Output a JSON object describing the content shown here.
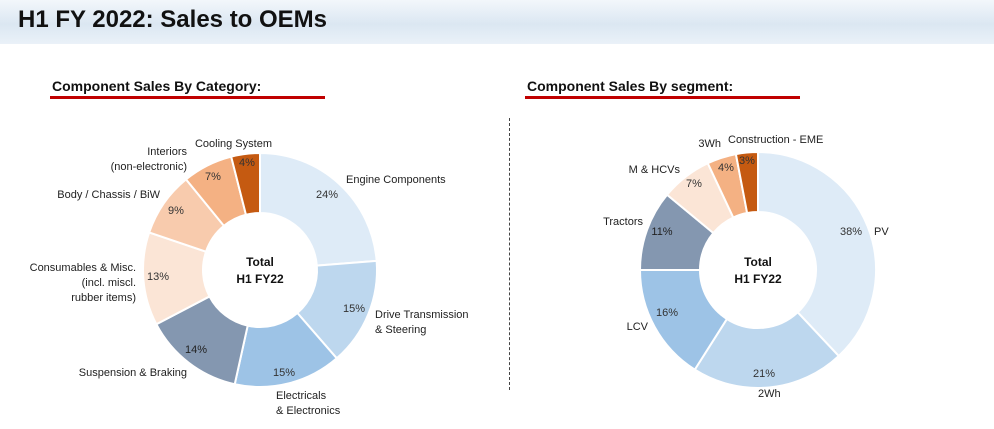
{
  "page": {
    "title": "H1 FY 2022: Sales to OEMs"
  },
  "chart_data": [
    {
      "type": "pie",
      "title": "Component Sales By Category:",
      "center_label": [
        "Total",
        "H1 FY22"
      ],
      "series": [
        {
          "name": "Engine Components",
          "label_lines": [
            "Engine Components"
          ],
          "value": 24,
          "label": "24%",
          "color": "#deebf7",
          "pct_color": "#333333"
        },
        {
          "name": "Drive Transmission & Steering",
          "label_lines": [
            "Drive Transmission",
            "& Steering"
          ],
          "value": 15,
          "label": "15%",
          "color": "#bdd7ee",
          "pct_color": "#333333"
        },
        {
          "name": "Electricals & Electronics",
          "label_lines": [
            "Electricals",
            "& Electronics"
          ],
          "value": 15,
          "label": "15%",
          "color": "#9dc3e6",
          "pct_color": "#333333"
        },
        {
          "name": "Suspension & Braking",
          "label_lines": [
            "Suspension & Braking"
          ],
          "value": 14,
          "label": "14%",
          "color": "#8497b0",
          "pct_color": "#222222"
        },
        {
          "name": "Consumables & Misc. (incl. miscl. rubber items)",
          "label_lines": [
            "Consumables & Misc.",
            "(incl. miscl.",
            "rubber items)"
          ],
          "value": 13,
          "label": "13%",
          "color": "#fbe5d6",
          "pct_color": "#333333"
        },
        {
          "name": "Body / Chassis / BiW",
          "label_lines": [
            "Body / Chassis / BiW"
          ],
          "value": 9,
          "label": "9%",
          "color": "#f8cbad",
          "pct_color": "#333333"
        },
        {
          "name": "Interiors (non-electronic)",
          "label_lines": [
            "Interiors",
            "(non-electronic)"
          ],
          "value": 7,
          "label": "7%",
          "color": "#f4b183",
          "pct_color": "#333333"
        },
        {
          "name": "Cooling System",
          "label_lines": [
            "Cooling System"
          ],
          "value": 4,
          "label": "4%",
          "color": "#c55a11",
          "pct_color": "#333333"
        }
      ]
    },
    {
      "type": "pie",
      "title": "Component Sales By segment:",
      "center_label": [
        "Total",
        "H1 FY22"
      ],
      "series": [
        {
          "name": "PV",
          "label_lines": [
            "PV"
          ],
          "value": 38,
          "label": "38%",
          "color": "#deebf7",
          "pct_color": "#333333"
        },
        {
          "name": "2Wh",
          "label_lines": [
            "2Wh"
          ],
          "value": 21,
          "label": "21%",
          "color": "#bdd7ee",
          "pct_color": "#333333"
        },
        {
          "name": "LCV",
          "label_lines": [
            "LCV"
          ],
          "value": 16,
          "label": "16%",
          "color": "#9dc3e6",
          "pct_color": "#333333"
        },
        {
          "name": "Tractors",
          "label_lines": [
            "Tractors"
          ],
          "value": 11,
          "label": "11%",
          "color": "#8497b0",
          "pct_color": "#222222"
        },
        {
          "name": "M & HCVs",
          "label_lines": [
            "M & HCVs"
          ],
          "value": 7,
          "label": "7%",
          "color": "#fbe5d6",
          "pct_color": "#333333"
        },
        {
          "name": "3Wh",
          "label_lines": [
            "3Wh"
          ],
          "value": 4,
          "label": "4%",
          "color": "#f4b183",
          "pct_color": "#333333"
        },
        {
          "name": "Construction - EME",
          "label_lines": [
            "Construction - EME"
          ],
          "value": 3,
          "label": "3%",
          "color": "#c55a11",
          "pct_color": "#333333"
        }
      ]
    }
  ]
}
